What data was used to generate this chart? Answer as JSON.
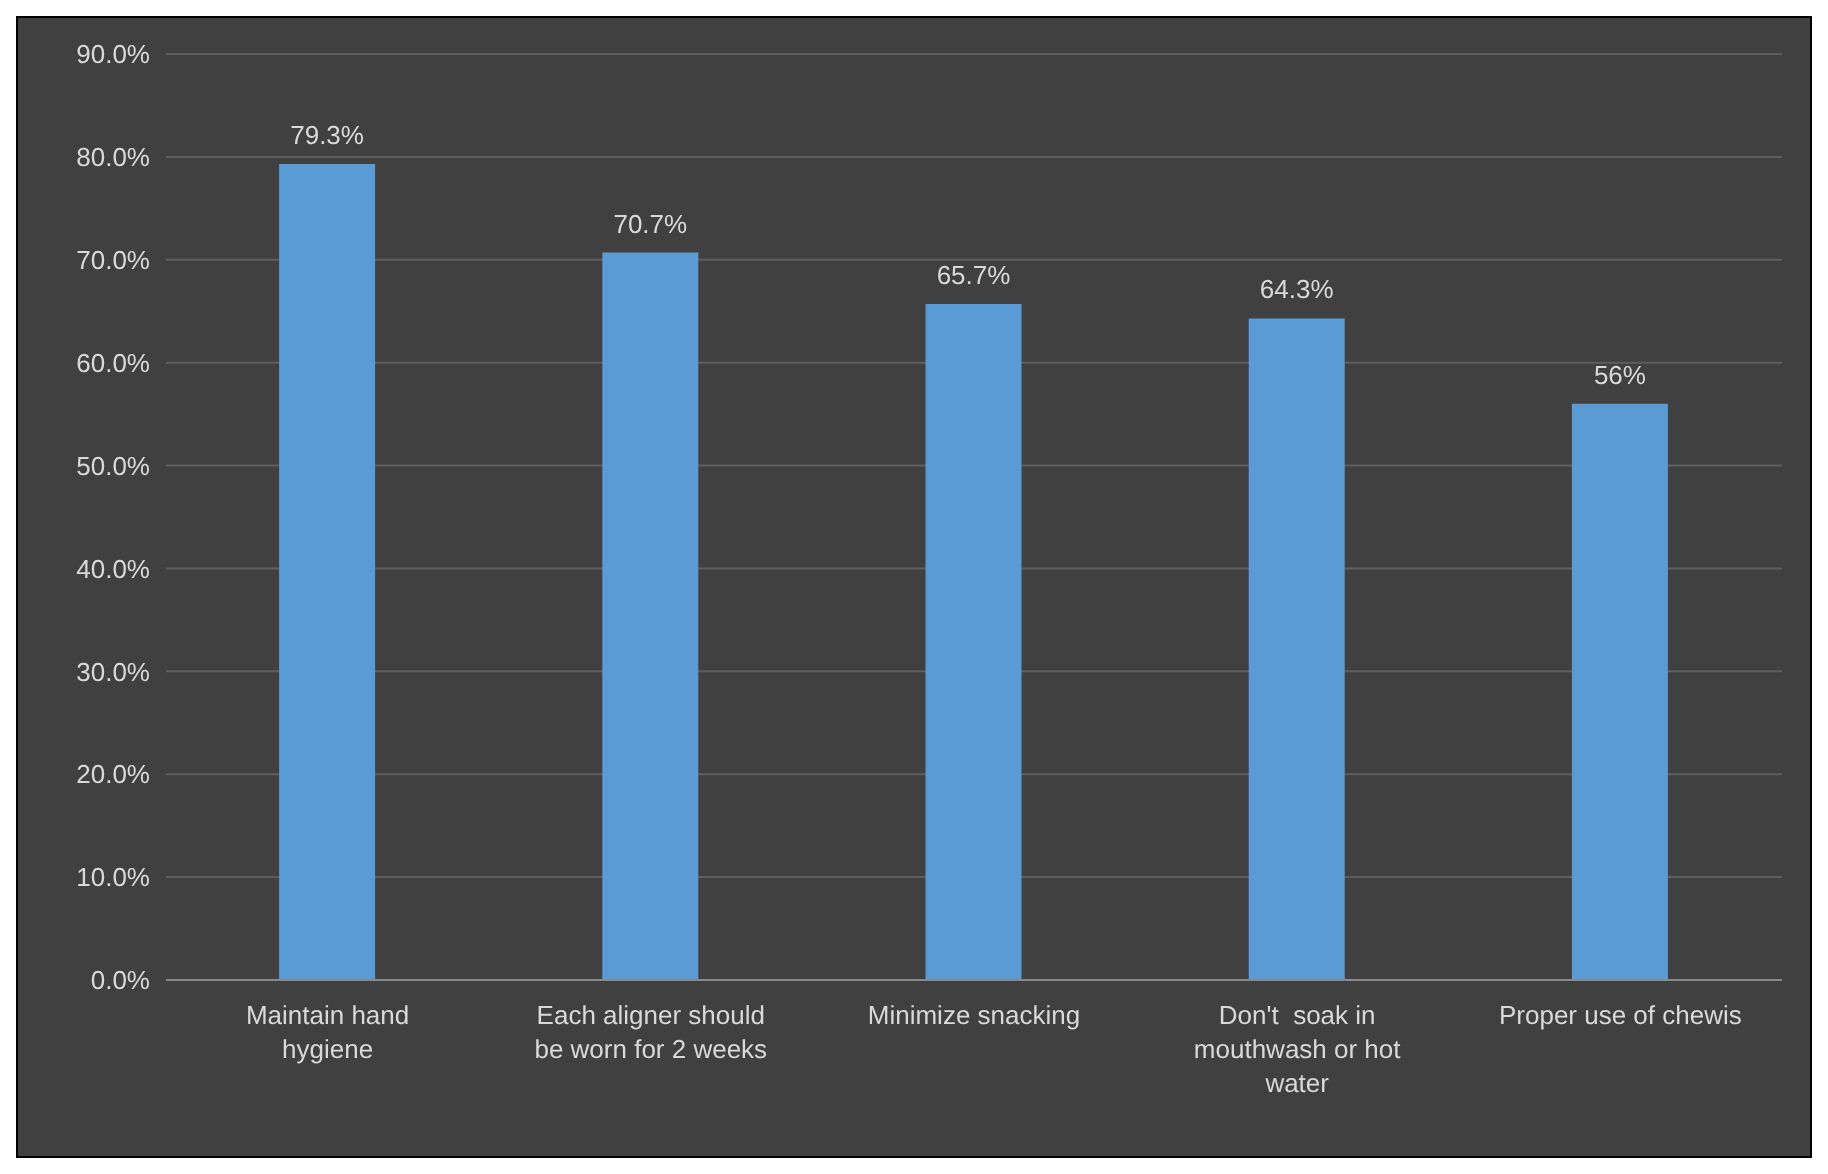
{
  "chart_data": {
    "type": "bar",
    "categories": [
      "Maintain hand hygiene",
      "Each aligner should be worn for 2 weeks",
      "Minimize snacking",
      "Don't  soak in mouthwash or hot water",
      "Proper use of chewis"
    ],
    "values": [
      79.3,
      70.7,
      65.7,
      64.3,
      56
    ],
    "value_labels": [
      "79.3%",
      "70.7%",
      "65.7%",
      "64.3%",
      "56%"
    ],
    "color": "#5b9bd5",
    "ylim": [
      0,
      90
    ],
    "yticks": [
      {
        "value": 0,
        "label": "0.0%"
      },
      {
        "value": 10,
        "label": "10.0%"
      },
      {
        "value": 20,
        "label": "20.0%"
      },
      {
        "value": 30,
        "label": "30.0%"
      },
      {
        "value": 40,
        "label": "40.0%"
      },
      {
        "value": 50,
        "label": "50.0%"
      },
      {
        "value": 60,
        "label": "60.0%"
      },
      {
        "value": 70,
        "label": "70.0%"
      },
      {
        "value": 80,
        "label": "80.0%"
      },
      {
        "value": 90,
        "label": "90.0%"
      }
    ],
    "grid": "y"
  }
}
